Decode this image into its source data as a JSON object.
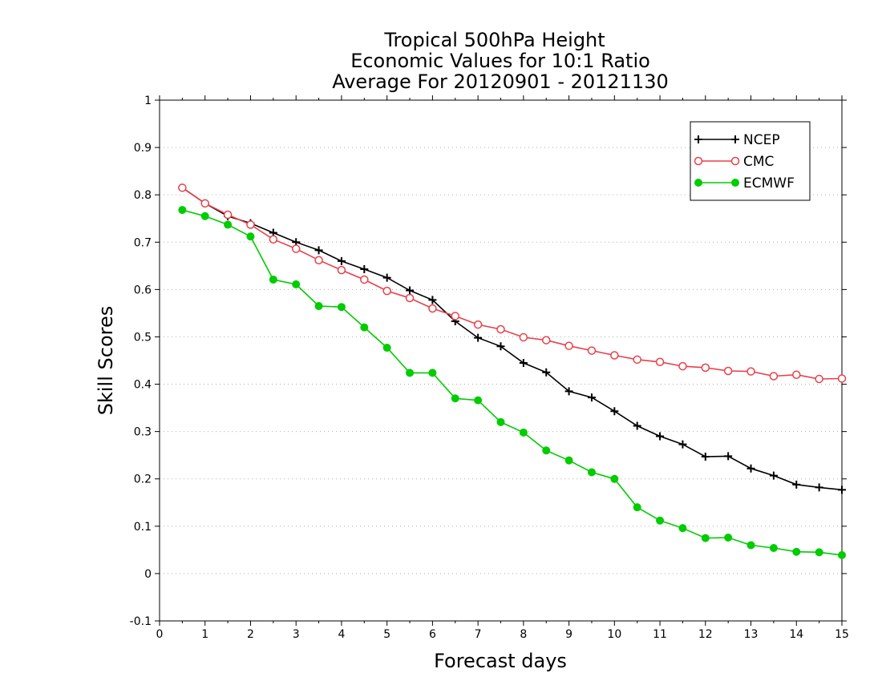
{
  "chart_data": {
    "type": "line",
    "title": [
      "Tropical 500hPa Height",
      "Economic Values for 10:1 Ratio",
      "Average For 20120901 - 20121130"
    ],
    "xlabel": "Forecast days",
    "ylabel": "Skill Scores",
    "xlim": [
      0,
      15
    ],
    "ylim": [
      -0.1,
      1
    ],
    "xticks": [
      "0",
      "1",
      "2",
      "3",
      "4",
      "5",
      "6",
      "7",
      "8",
      "9",
      "10",
      "11",
      "12",
      "13",
      "14",
      "15"
    ],
    "yticks": [
      "-0.1",
      "0",
      "0.1",
      "0.2",
      "0.3",
      "0.4",
      "0.5",
      "0.6",
      "0.7",
      "0.8",
      "0.9",
      "1"
    ],
    "grid": true,
    "legend_position": "top-right",
    "x": [
      0.5,
      1,
      1.5,
      2,
      2.5,
      3,
      3.5,
      4,
      4.5,
      5,
      5.5,
      6,
      6.5,
      7,
      7.5,
      8,
      8.5,
      9,
      9.5,
      10,
      10.5,
      11,
      11.5,
      12,
      12.5,
      13,
      13.5,
      14,
      14.5,
      15
    ],
    "series": [
      {
        "name": "NCEP",
        "color": "#000000",
        "marker": "plus",
        "values": [
          0.815,
          0.782,
          0.755,
          0.74,
          0.72,
          0.7,
          0.683,
          0.66,
          0.643,
          0.625,
          0.598,
          0.578,
          0.533,
          0.498,
          0.48,
          0.445,
          0.425,
          0.385,
          0.372,
          0.343,
          0.312,
          0.29,
          0.273,
          0.247,
          0.248,
          0.222,
          0.207,
          0.188,
          0.182,
          0.177
        ]
      },
      {
        "name": "CMC",
        "color": "#e8404a",
        "marker": "open-circle",
        "values": [
          0.815,
          0.782,
          0.758,
          0.737,
          0.706,
          0.686,
          0.662,
          0.641,
          0.621,
          0.597,
          0.582,
          0.56,
          0.544,
          0.526,
          0.516,
          0.499,
          0.493,
          0.481,
          0.471,
          0.461,
          0.452,
          0.447,
          0.438,
          0.435,
          0.428,
          0.427,
          0.417,
          0.42,
          0.411,
          0.412
        ]
      },
      {
        "name": "ECMWF",
        "color": "#00cc00",
        "marker": "filled-circle",
        "values": [
          0.768,
          0.755,
          0.737,
          0.712,
          0.621,
          0.611,
          0.565,
          0.563,
          0.52,
          0.477,
          0.424,
          0.424,
          0.37,
          0.366,
          0.32,
          0.298,
          0.26,
          0.239,
          0.214,
          0.2,
          0.14,
          0.112,
          0.096,
          0.075,
          0.076,
          0.06,
          0.054,
          0.046,
          0.045,
          0.039
        ]
      }
    ]
  }
}
